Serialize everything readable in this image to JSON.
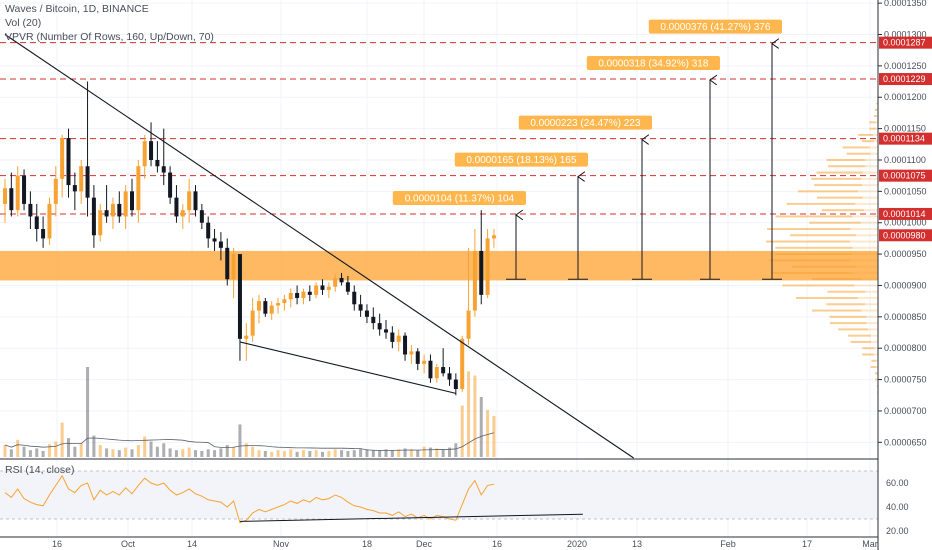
{
  "legend": {
    "symbol": "Waves / Bitcoin, 1D, BINANCE",
    "volume": "Vol (20)",
    "vpvr": "VPVR (Number Of Rows, 160, Up/Down, 70)",
    "rsi": "RSI (14, close)"
  },
  "colors": {
    "up": "#f7a333",
    "down": "#131722",
    "zone": "#ffad47",
    "hline": "#d32f2f",
    "annotation": "#ffb74d",
    "grid": "#f0f3fa"
  },
  "chart_data": {
    "type": "candlestick",
    "price_axis": {
      "ticks": [
        "0.0001350",
        "0.0001300",
        "0.0001250",
        "0.0001200",
        "0.0001150",
        "0.0001100",
        "0.0001050",
        "0.0001000",
        "0.0000950",
        "0.0000900",
        "0.0000850",
        "0.0000800",
        "0.0000750",
        "0.0000700",
        "0.0000650"
      ],
      "range": [
        6.25e-05,
        0.0001355
      ]
    },
    "rsi_axis": {
      "ticks": [
        "60.00",
        "40.00",
        "20.00"
      ],
      "range": [
        15,
        75
      ],
      "band": [
        30,
        70
      ]
    },
    "time_axis": [
      "16",
      "Oct",
      "14",
      "Nov",
      "18",
      "Dec",
      "16",
      "2020",
      "13",
      "Feb",
      "17",
      "Mar"
    ],
    "price_tags": [
      {
        "value": 0.0001287,
        "label": "0.0001287"
      },
      {
        "value": 0.0001229,
        "label": "0.0001229"
      },
      {
        "value": 0.0001134,
        "label": "0.0001134"
      },
      {
        "value": 0.0001075,
        "label": "0.0001075"
      },
      {
        "value": 0.0001014,
        "label": "0.0001014"
      }
    ],
    "current_price": {
      "value": 9.8e-05,
      "label": "0.0000980"
    },
    "support_zone": [
      9.08e-05,
      9.55e-05
    ],
    "targets": [
      {
        "label": "0.0000104 (11.37%) 104",
        "top": 0.0001014
      },
      {
        "label": "0.0000165 (18.13%) 165",
        "top": 0.0001075
      },
      {
        "label": "0.0000223 (24.47%) 223",
        "top": 0.0001134
      },
      {
        "label": "0.0000318 (34.92%) 318",
        "top": 0.0001229
      },
      {
        "label": "0.0000376 (41.27%) 376",
        "top": 0.0001287
      }
    ],
    "target_base": 9.1e-05,
    "trendlines": [
      {
        "name": "descending-resistance",
        "from": [
          0,
          0.00013
        ],
        "to": [
          99,
          6.25e-05
        ]
      },
      {
        "name": "falling-support",
        "from": [
          37,
          8.1e-05
        ],
        "to": [
          71,
          7.28e-05
        ]
      }
    ],
    "candles": [
      {
        "o": 0.000103,
        "h": 0.000107,
        "l": 0.0001,
        "c": 0.0001055
      },
      {
        "o": 0.0001055,
        "h": 0.000108,
        "l": 0.000101,
        "c": 0.000102
      },
      {
        "o": 0.000102,
        "h": 0.000109,
        "l": 0.000101,
        "c": 0.0001075
      },
      {
        "o": 0.0001075,
        "h": 0.0001085,
        "l": 0.000102,
        "c": 0.000103
      },
      {
        "o": 0.000103,
        "h": 0.000105,
        "l": 9.9e-05,
        "c": 0.000101
      },
      {
        "o": 0.000101,
        "h": 0.000103,
        "l": 9.7e-05,
        "c": 9.9e-05
      },
      {
        "o": 9.9e-05,
        "h": 0.000101,
        "l": 9.6e-05,
        "c": 9.75e-05
      },
      {
        "o": 9.75e-05,
        "h": 0.000104,
        "l": 9.65e-05,
        "c": 0.000103
      },
      {
        "o": 0.000103,
        "h": 0.000109,
        "l": 0.000101,
        "c": 0.000107
      },
      {
        "o": 0.000107,
        "h": 0.000114,
        "l": 0.000104,
        "c": 0.0001135
      },
      {
        "o": 0.0001135,
        "h": 0.000115,
        "l": 0.000104,
        "c": 0.000106
      },
      {
        "o": 0.000106,
        "h": 0.000108,
        "l": 0.000102,
        "c": 0.000105
      },
      {
        "o": 0.000105,
        "h": 0.00011,
        "l": 0.000103,
        "c": 0.000109
      },
      {
        "o": 0.000109,
        "h": 0.0001225,
        "l": 0.000101,
        "c": 0.000104
      },
      {
        "o": 0.000104,
        "h": 0.000106,
        "l": 9.6e-05,
        "c": 9.8e-05
      },
      {
        "o": 9.8e-05,
        "h": 0.000103,
        "l": 9.7e-05,
        "c": 0.000102
      },
      {
        "o": 0.000102,
        "h": 0.000106,
        "l": 0.0001,
        "c": 0.000101
      },
      {
        "o": 0.000101,
        "h": 0.000104,
        "l": 9.9e-05,
        "c": 0.000103
      },
      {
        "o": 0.000103,
        "h": 0.000105,
        "l": 0.0001,
        "c": 0.000101
      },
      {
        "o": 0.000101,
        "h": 0.000106,
        "l": 9.9e-05,
        "c": 0.000105
      },
      {
        "o": 0.000105,
        "h": 0.000107,
        "l": 0.000101,
        "c": 0.000102
      },
      {
        "o": 0.000102,
        "h": 0.00011,
        "l": 0.0001,
        "c": 0.000109
      },
      {
        "o": 0.000109,
        "h": 0.000114,
        "l": 0.000107,
        "c": 0.000113
      },
      {
        "o": 0.000113,
        "h": 0.000116,
        "l": 0.000109,
        "c": 0.00011
      },
      {
        "o": 0.00011,
        "h": 0.000113,
        "l": 0.000108,
        "c": 0.000109
      },
      {
        "o": 0.000109,
        "h": 0.000115,
        "l": 0.000106,
        "c": 0.000108
      },
      {
        "o": 0.000108,
        "h": 0.000109,
        "l": 0.000103,
        "c": 0.000104
      },
      {
        "o": 0.000104,
        "h": 0.000106,
        "l": 0.0001,
        "c": 0.000101
      },
      {
        "o": 0.000101,
        "h": 0.000103,
        "l": 9.9e-05,
        "c": 0.000102
      },
      {
        "o": 0.000102,
        "h": 0.000107,
        "l": 0.0001,
        "c": 0.000105
      },
      {
        "o": 0.000105,
        "h": 0.000106,
        "l": 0.000101,
        "c": 0.000102
      },
      {
        "o": 0.000102,
        "h": 0.000103,
        "l": 9.9e-05,
        "c": 0.0001
      },
      {
        "o": 0.0001,
        "h": 0.000101,
        "l": 9.6e-05,
        "c": 9.75e-05
      },
      {
        "o": 9.75e-05,
        "h": 9.9e-05,
        "l": 9.55e-05,
        "c": 9.7e-05
      },
      {
        "o": 9.7e-05,
        "h": 9.85e-05,
        "l": 9.4e-05,
        "c": 9.6e-05
      },
      {
        "o": 9.6e-05,
        "h": 9.75e-05,
        "l": 9e-05,
        "c": 9.1e-05
      },
      {
        "o": 9.1e-05,
        "h": 9.6e-05,
        "l": 8.8e-05,
        "c": 9.5e-05
      },
      {
        "o": 9.5e-05,
        "h": 9.5e-05,
        "l": 7.8e-05,
        "c": 8.15e-05
      },
      {
        "o": 8.15e-05,
        "h": 8.4e-05,
        "l": 7.8e-05,
        "c": 8.2e-05
      },
      {
        "o": 8.2e-05,
        "h": 8.8e-05,
        "l": 8.1e-05,
        "c": 8.6e-05
      },
      {
        "o": 8.6e-05,
        "h": 8.85e-05,
        "l": 8.4e-05,
        "c": 8.75e-05
      },
      {
        "o": 8.75e-05,
        "h": 8.8e-05,
        "l": 8.5e-05,
        "c": 8.55e-05
      },
      {
        "o": 8.55e-05,
        "h": 8.75e-05,
        "l": 8.45e-05,
        "c": 8.68e-05
      },
      {
        "o": 8.68e-05,
        "h": 8.8e-05,
        "l": 8.55e-05,
        "c": 8.72e-05
      },
      {
        "o": 8.72e-05,
        "h": 8.85e-05,
        "l": 8.6e-05,
        "c": 8.78e-05
      },
      {
        "o": 8.78e-05,
        "h": 8.95e-05,
        "l": 8.65e-05,
        "c": 8.88e-05
      },
      {
        "o": 8.88e-05,
        "h": 9e-05,
        "l": 8.7e-05,
        "c": 8.8e-05
      },
      {
        "o": 8.8e-05,
        "h": 8.95e-05,
        "l": 8.7e-05,
        "c": 8.9e-05
      },
      {
        "o": 8.9e-05,
        "h": 9e-05,
        "l": 8.75e-05,
        "c": 8.85e-05
      },
      {
        "o": 8.85e-05,
        "h": 9.05e-05,
        "l": 8.8e-05,
        "c": 9e-05
      },
      {
        "o": 9e-05,
        "h": 9.1e-05,
        "l": 8.85e-05,
        "c": 8.93e-05
      },
      {
        "o": 8.93e-05,
        "h": 9.05e-05,
        "l": 8.8e-05,
        "c": 8.98e-05
      },
      {
        "o": 8.98e-05,
        "h": 9.18e-05,
        "l": 8.9e-05,
        "c": 9.12e-05
      },
      {
        "o": 9.12e-05,
        "h": 9.2e-05,
        "l": 9e-05,
        "c": 9.05e-05
      },
      {
        "o": 9.05e-05,
        "h": 9.15e-05,
        "l": 8.85e-05,
        "c": 8.9e-05
      },
      {
        "o": 8.9e-05,
        "h": 9e-05,
        "l": 8.6e-05,
        "c": 8.7e-05
      },
      {
        "o": 8.7e-05,
        "h": 8.85e-05,
        "l": 8.5e-05,
        "c": 8.6e-05
      },
      {
        "o": 8.6e-05,
        "h": 8.7e-05,
        "l": 8.4e-05,
        "c": 8.5e-05
      },
      {
        "o": 8.5e-05,
        "h": 8.65e-05,
        "l": 8.3e-05,
        "c": 8.4e-05
      },
      {
        "o": 8.4e-05,
        "h": 8.55e-05,
        "l": 8.2e-05,
        "c": 8.3e-05
      },
      {
        "o": 8.3e-05,
        "h": 8.45e-05,
        "l": 8.15e-05,
        "c": 8.25e-05
      },
      {
        "o": 8.25e-05,
        "h": 8.35e-05,
        "l": 8e-05,
        "c": 8.1e-05
      },
      {
        "o": 8.1e-05,
        "h": 8.3e-05,
        "l": 7.95e-05,
        "c": 8.2e-05
      },
      {
        "o": 8.2e-05,
        "h": 8.25e-05,
        "l": 7.8e-05,
        "c": 7.9e-05
      },
      {
        "o": 7.9e-05,
        "h": 8.05e-05,
        "l": 7.75e-05,
        "c": 7.95e-05
      },
      {
        "o": 7.95e-05,
        "h": 8e-05,
        "l": 7.65e-05,
        "c": 7.75e-05
      },
      {
        "o": 7.75e-05,
        "h": 7.9e-05,
        "l": 7.6e-05,
        "c": 7.8e-05
      },
      {
        "o": 7.8e-05,
        "h": 7.9e-05,
        "l": 7.45e-05,
        "c": 7.52e-05
      },
      {
        "o": 7.52e-05,
        "h": 7.75e-05,
        "l": 7.45e-05,
        "c": 7.7e-05
      },
      {
        "o": 7.7e-05,
        "h": 8e-05,
        "l": 7.55e-05,
        "c": 7.6e-05
      },
      {
        "o": 7.6e-05,
        "h": 7.7e-05,
        "l": 7.4e-05,
        "c": 7.5e-05
      },
      {
        "o": 7.5e-05,
        "h": 7.6e-05,
        "l": 7.25e-05,
        "c": 7.35e-05
      },
      {
        "o": 7.35e-05,
        "h": 8.2e-05,
        "l": 7.3e-05,
        "c": 8.15e-05
      },
      {
        "o": 8.15e-05,
        "h": 9.6e-05,
        "l": 8.05e-05,
        "c": 8.6e-05
      },
      {
        "o": 8.6e-05,
        "h": 9.9e-05,
        "l": 8.5e-05,
        "c": 9.55e-05
      },
      {
        "o": 9.55e-05,
        "h": 0.000102,
        "l": 8.7e-05,
        "c": 8.85e-05
      },
      {
        "o": 8.85e-05,
        "h": 9.9e-05,
        "l": 8.8e-05,
        "c": 9.75e-05
      },
      {
        "o": 9.75e-05,
        "h": 9.9e-05,
        "l": 9.6e-05,
        "c": 9.8e-05
      }
    ],
    "volume": [
      14,
      9,
      20,
      12,
      8,
      10,
      7,
      15,
      18,
      40,
      22,
      12,
      16,
      105,
      25,
      14,
      10,
      9,
      8,
      11,
      9,
      14,
      24,
      18,
      12,
      16,
      10,
      8,
      9,
      11,
      8,
      7,
      9,
      8,
      10,
      14,
      12,
      38,
      16,
      12,
      8,
      7,
      6,
      8,
      7,
      9,
      6,
      8,
      7,
      8,
      6,
      7,
      9,
      8,
      7,
      8,
      10,
      9,
      8,
      7,
      9,
      8,
      9,
      10,
      9,
      8,
      12,
      11,
      10,
      9,
      11,
      16,
      60,
      100,
      95,
      70,
      55,
      48
    ],
    "rsi": [
      52,
      48,
      55,
      47,
      44,
      42,
      41,
      50,
      58,
      66,
      55,
      52,
      58,
      60,
      46,
      54,
      50,
      53,
      50,
      56,
      51,
      58,
      64,
      60,
      58,
      60,
      54,
      50,
      52,
      55,
      51,
      49,
      46,
      45,
      44,
      40,
      45,
      27,
      29,
      35,
      38,
      36,
      38,
      40,
      42,
      45,
      43,
      46,
      44,
      48,
      46,
      47,
      50,
      48,
      44,
      41,
      40,
      38,
      37,
      35,
      35,
      33,
      36,
      32,
      34,
      31,
      33,
      30,
      33,
      32,
      30,
      29,
      42,
      55,
      62,
      50,
      58,
      59
    ],
    "rsi_trendline": {
      "from": [
        37,
        28
      ],
      "to": [
        91,
        34
      ]
    }
  }
}
